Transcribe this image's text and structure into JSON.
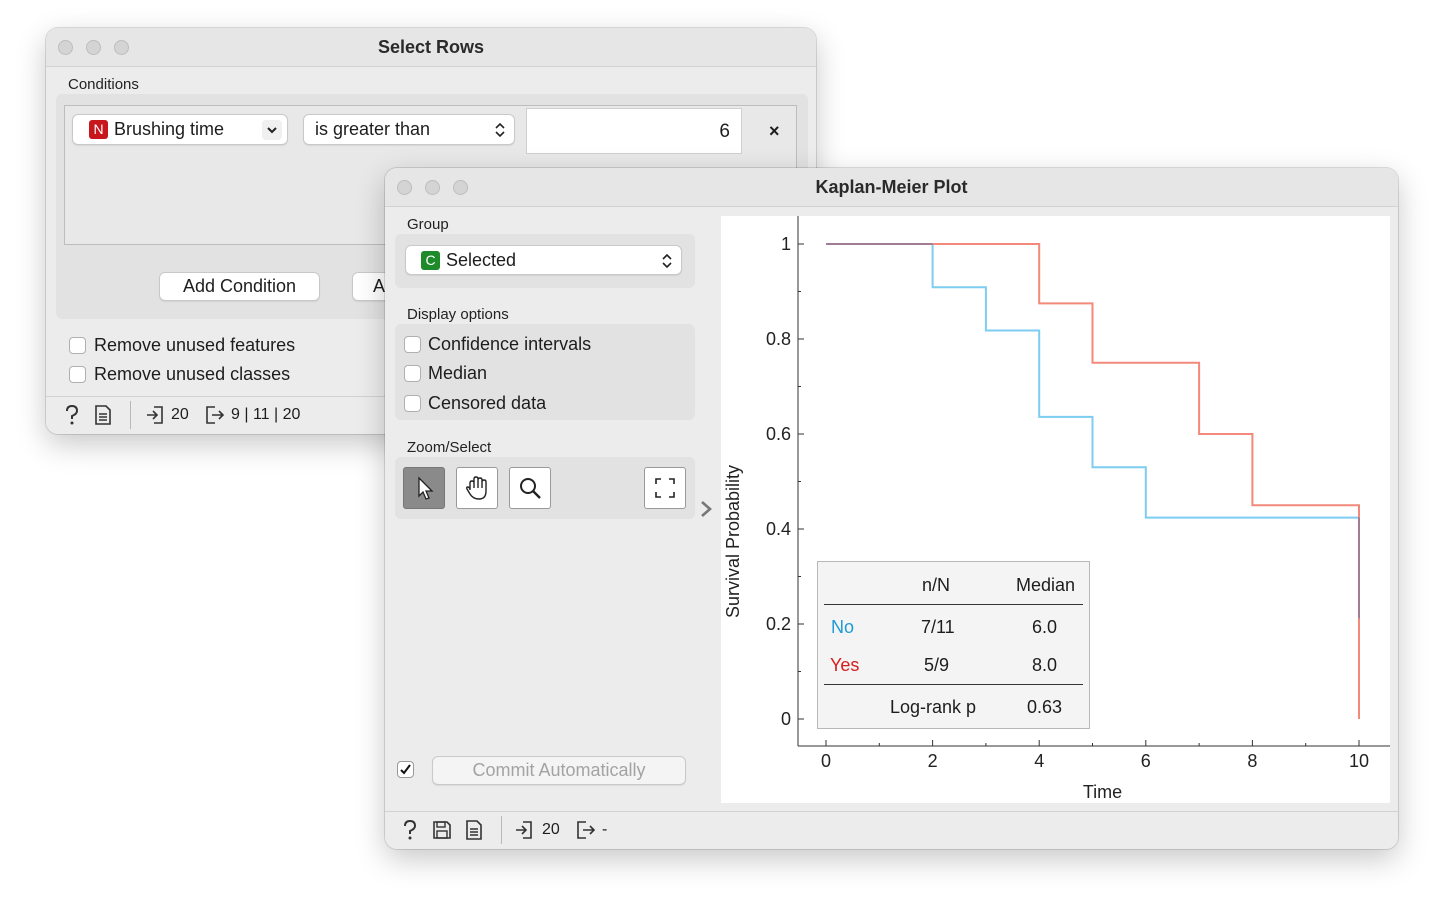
{
  "select_rows": {
    "title": "Select Rows",
    "conditions_label": "Conditions",
    "condition": {
      "variable_badge": "N",
      "variable": "Brushing time",
      "operator": "is greater than",
      "value": "6",
      "remove_glyph": "×"
    },
    "add_condition_label": "Add Condition",
    "add_all_label_partial": "A",
    "remove_unused_features": "Remove unused features",
    "remove_unused_classes": "Remove unused classes",
    "status": {
      "input_count": "20",
      "output_counts": "9 | 11 | 20"
    }
  },
  "kaplan_meier": {
    "title": "Kaplan-Meier Plot",
    "group_label": "Group",
    "group_badge": "C",
    "group_value": "Selected",
    "display_options_label": "Display options",
    "options": {
      "confidence_intervals": "Confidence intervals",
      "median": "Median",
      "censored_data": "Censored data"
    },
    "zoom_select_label": "Zoom/Select",
    "tools": [
      "pointer-icon",
      "hand-icon",
      "zoom-icon",
      "fit-screen-icon"
    ],
    "commit_label": "Commit Automatically",
    "commit_checked": true,
    "status": {
      "input_count": "20",
      "output": "-"
    },
    "stats_table": {
      "headers": [
        "",
        "n/N",
        "Median"
      ],
      "rows": [
        {
          "group": "No",
          "nN": "7/11",
          "median": "6.0"
        },
        {
          "group": "Yes",
          "nN": "5/9",
          "median": "8.0"
        }
      ],
      "logrank_label": "Log-rank p",
      "logrank_value": "0.63"
    }
  },
  "chart_data": {
    "type": "line",
    "step": true,
    "xlabel": "Time",
    "ylabel": "Survival Probability",
    "xlim": [
      0,
      10
    ],
    "ylim": [
      0,
      1
    ],
    "xticks": [
      "0",
      "2",
      "4",
      "6",
      "8",
      "10"
    ],
    "yticks": [
      "0",
      "0.2",
      "0.4",
      "0.6",
      "0.8",
      "1"
    ],
    "series": [
      {
        "name": "No",
        "color": "#7ccdf0",
        "x": [
          0,
          2,
          3,
          4,
          5,
          6,
          10
        ],
        "y": [
          1.0,
          0.909,
          0.818,
          0.636,
          0.53,
          0.424,
          0.212
        ]
      },
      {
        "name": "Yes",
        "color": "#f2897a",
        "x": [
          0,
          4,
          5,
          7,
          8,
          10
        ],
        "y": [
          1.0,
          0.875,
          0.75,
          0.6,
          0.45,
          0.0
        ]
      }
    ],
    "colors": {
      "no": "#1f9ad6",
      "yes": "#d71c1c",
      "overlap": "#a07d95"
    }
  }
}
